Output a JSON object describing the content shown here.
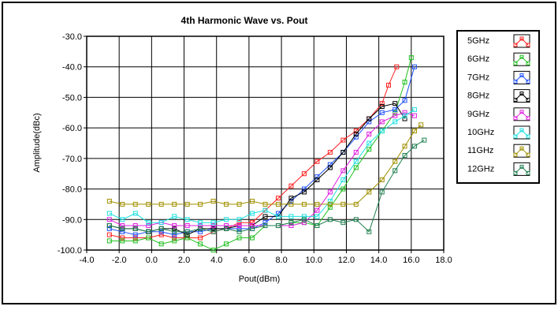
{
  "chart_data": {
    "type": "line",
    "title": "4th Harmonic Wave vs. Pout",
    "xlabel": "Pout(dBm)",
    "ylabel": "Amplitude(dBc)",
    "xlim": [
      -4.0,
      18.0
    ],
    "ylim": [
      -100.0,
      -30.0
    ],
    "xticks": [
      "-4.0",
      "-2.0",
      "0.0",
      "2.0",
      "4.0",
      "6.0",
      "8.0",
      "10.0",
      "12.0",
      "14.0",
      "16.0",
      "18.0"
    ],
    "yticks": [
      "-30.0",
      "-40.0",
      "-50.0",
      "-60.0",
      "-70.0",
      "-80.0",
      "-90.0",
      "-100.0"
    ],
    "grid": true,
    "legend_position": "right",
    "series": [
      {
        "name": "5GHz",
        "color": "#ff2020",
        "x": [
          -2.6,
          -1.8,
          -1,
          -0.2,
          0.6,
          1.4,
          2.2,
          3.0,
          3.8,
          4.6,
          5.4,
          6.2,
          7,
          7.8,
          8.6,
          9.4,
          10.2,
          11,
          11.8,
          12.6,
          13.4,
          14.2,
          14.6,
          15.1
        ],
        "y": [
          -95,
          -96,
          -96,
          -96,
          -95,
          -96,
          -96,
          -96,
          -94,
          -93,
          -91,
          -91,
          -87,
          -83,
          -79,
          -75,
          -71,
          -68,
          -64,
          -61,
          -57,
          -52,
          -46,
          -40
        ]
      },
      {
        "name": "6GHz",
        "color": "#20c020",
        "x": [
          -2.6,
          -1.8,
          -1,
          -0.2,
          0.6,
          1.4,
          2.2,
          3.0,
          3.8,
          4.6,
          5.4,
          6.2,
          7,
          7.8,
          8.6,
          9.4,
          10.2,
          11,
          11.8,
          12.6,
          13.4,
          14.2,
          15,
          15.6,
          16
        ],
        "y": [
          -97,
          -97,
          -97,
          -96,
          -98,
          -97,
          -96,
          -98,
          -100,
          -98,
          -96,
          -96,
          -92,
          -92,
          -91,
          -91,
          -92,
          -86,
          -80,
          -73,
          -67,
          -61,
          -55,
          -45,
          -37
        ]
      },
      {
        "name": "7GHz",
        "color": "#2050ff",
        "x": [
          -2.6,
          -1.8,
          -1,
          -0.2,
          0.6,
          1.4,
          2.2,
          3.0,
          3.8,
          4.6,
          5.4,
          6.2,
          7,
          7.8,
          8.6,
          9.4,
          10.2,
          11,
          11.8,
          12.6,
          13.4,
          14.2,
          15,
          15.6,
          16.2
        ],
        "y": [
          -93,
          -94,
          -95,
          -94,
          -94,
          -95,
          -94,
          -94,
          -93,
          -93,
          -93,
          -93,
          -91,
          -88,
          -84,
          -80,
          -76,
          -72,
          -68,
          -63,
          -58,
          -55,
          -54,
          -51,
          -40
        ]
      },
      {
        "name": "8GHz",
        "color": "#000000",
        "x": [
          -2.6,
          -1.8,
          -1,
          -0.2,
          0.6,
          1.4,
          2.2,
          3.0,
          3.8,
          4.6,
          5.4,
          6.2,
          7,
          7.8,
          8.6,
          9.4,
          10.2,
          11,
          11.8,
          12.6,
          13.4,
          14.2,
          15,
          15.6
        ],
        "y": [
          -92,
          -93,
          -93,
          -94,
          -93,
          -93,
          -95,
          -93,
          -93,
          -93,
          -92,
          -92,
          -89,
          -89,
          -83,
          -81,
          -77,
          -73,
          -68,
          -62,
          -57,
          -53,
          -52,
          -57
        ]
      },
      {
        "name": "9GHz",
        "color": "#e020e0",
        "x": [
          -2.6,
          -1.8,
          -1,
          -0.2,
          0.6,
          1.4,
          2.2,
          3.0,
          3.8,
          4.6,
          5.4,
          6.2,
          7,
          7.8,
          8.6,
          9.4,
          10.2,
          11,
          11.8,
          12.6,
          13.4,
          14.2,
          15,
          15.6,
          16.2
        ],
        "y": [
          -90,
          -92,
          -92,
          -92,
          -91,
          -92,
          -92,
          -92,
          -92,
          -92,
          -92,
          -92,
          -92,
          -92,
          -92,
          -91,
          -87,
          -81,
          -74,
          -68,
          -62,
          -58,
          -56,
          -55,
          -56
        ]
      },
      {
        "name": "10GHz",
        "color": "#20e0e0",
        "x": [
          -2.6,
          -1.8,
          -1,
          -0.2,
          0.6,
          1.4,
          2.2,
          3.0,
          3.8,
          4.6,
          5.4,
          6.2,
          7,
          7.8,
          8.6,
          9.4,
          10.2,
          11,
          11.8,
          12.6,
          13.4,
          14.2,
          15,
          15.6,
          16.2
        ],
        "y": [
          -88,
          -90,
          -88,
          -91,
          -91,
          -89,
          -90,
          -91,
          -91,
          -90,
          -90,
          -88,
          -87,
          -89,
          -89,
          -89,
          -89,
          -84,
          -77,
          -71,
          -65,
          -61,
          -58,
          -56,
          -54
        ]
      },
      {
        "name": "11GHz",
        "color": "#a09000",
        "x": [
          -2.6,
          -1.8,
          -1,
          -0.2,
          0.6,
          1.4,
          2.2,
          3.0,
          3.8,
          4.6,
          5.4,
          6.2,
          7,
          7.8,
          8.6,
          9.4,
          10.2,
          11,
          11.8,
          12.6,
          13.4,
          14.2,
          15,
          15.6,
          16.2,
          16.6
        ],
        "y": [
          -84,
          -85,
          -85,
          -85,
          -85,
          -85,
          -85,
          -85,
          -84,
          -85,
          -85,
          -84,
          -85,
          -85,
          -85,
          -85,
          -85,
          -85,
          -85,
          -85,
          -81,
          -77,
          -71,
          -66,
          -61,
          -59
        ]
      },
      {
        "name": "12GHz",
        "color": "#208050",
        "x": [
          -2.6,
          -1.8,
          -1,
          -0.2,
          0.6,
          1.4,
          2.2,
          3.0,
          3.8,
          4.6,
          5.4,
          6.2,
          7,
          7.8,
          8.6,
          9.4,
          10.2,
          11,
          11.8,
          12.6,
          13.4,
          14.2,
          15,
          15.6,
          16.2,
          16.8
        ],
        "y": [
          -92,
          -93,
          -93,
          -94,
          -93,
          -94,
          -94,
          -93,
          -94,
          -93,
          -94,
          -93,
          -92,
          -92,
          -91,
          -90,
          -92,
          -90,
          -91,
          -90,
          -94,
          -81,
          -74,
          -69,
          -66,
          -64
        ]
      }
    ]
  }
}
